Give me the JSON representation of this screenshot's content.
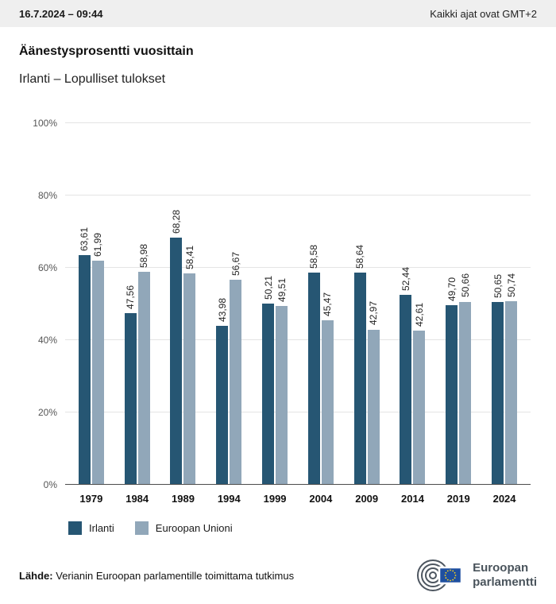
{
  "header": {
    "datetime": "16.7.2024 – 09:44",
    "timezone_note": "Kaikki ajat ovat GMT+2"
  },
  "chart_data": {
    "type": "bar",
    "title": "Äänestysprosentti vuosittain",
    "subtitle": "Irlanti – Lopulliset tulokset",
    "categories": [
      "1979",
      "1984",
      "1989",
      "1994",
      "1999",
      "2004",
      "2009",
      "2014",
      "2019",
      "2024"
    ],
    "series": [
      {
        "key": "irlanti",
        "name": "Irlanti",
        "color": "#265673",
        "values": [
          63.61,
          47.56,
          68.28,
          43.98,
          50.21,
          58.58,
          58.64,
          52.44,
          49.7,
          50.65
        ],
        "labels": [
          "63,61",
          "47,56",
          "68,28",
          "43,98",
          "50,21",
          "58,58",
          "58,64",
          "52,44",
          "49,70",
          "50,65"
        ]
      },
      {
        "key": "euroopan-unioni",
        "name": "Euroopan Unioni",
        "color": "#91a7b9",
        "values": [
          61.99,
          58.98,
          58.41,
          56.67,
          49.51,
          45.47,
          42.97,
          42.61,
          50.66,
          50.74
        ],
        "labels": [
          "61,99",
          "58,98",
          "58,41",
          "56,67",
          "49,51",
          "45,47",
          "42,97",
          "42,61",
          "50,66",
          "50,74"
        ]
      }
    ],
    "ylim": [
      0,
      100
    ],
    "yticks": [
      "0%",
      "20%",
      "40%",
      "60%",
      "80%",
      "100%"
    ],
    "ytick_values": [
      0,
      20,
      40,
      60,
      80,
      100
    ],
    "grid": true,
    "legend_position": "bottom"
  },
  "footer": {
    "source_label": "Lähde:",
    "source_text": " Verianin Euroopan parlamentille toimittama tutkimus"
  },
  "logo": {
    "line1": "Euroopan",
    "line2": "parlamentti"
  }
}
